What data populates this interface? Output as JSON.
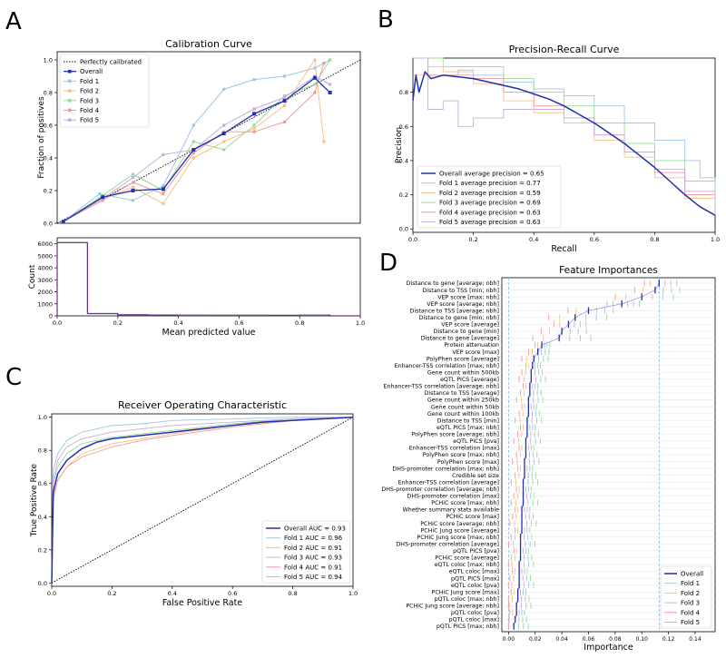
{
  "colors": {
    "overall": "#2030b0",
    "fold1": "#9ec6e8",
    "fold2": "#f7c08a",
    "fold3": "#9fd89a",
    "fold4": "#f29a9a",
    "fold5": "#c5aee0",
    "purple": "#6a2f8a",
    "vline": "#7fb0dc"
  },
  "chart_data": [
    {
      "panel": "A",
      "type": "line",
      "title": "Calibration Curve",
      "xlabel": "",
      "ylabel": "Fraction of positives",
      "xlim": [
        0,
        1
      ],
      "ylim": [
        0,
        1.05
      ],
      "xticks": [
        "0.0",
        "0.2",
        "0.4",
        "0.6",
        "0.8",
        "1.0"
      ],
      "yticks": [
        "0.0",
        "0.2",
        "0.4",
        "0.6",
        "0.8",
        "1.0"
      ],
      "xtick_values": [
        0,
        0.2,
        0.4,
        0.6,
        0.8,
        1.0
      ],
      "ytick_values": [
        0,
        0.2,
        0.4,
        0.6,
        0.8,
        1.0
      ],
      "legend": [
        "Perfectly calibrated",
        "Overall",
        "Fold 1",
        "Fold 2",
        "Fold 3",
        "Fold 4",
        "Fold 5"
      ],
      "series": [
        {
          "name": "Overall",
          "x": [
            0.02,
            0.15,
            0.25,
            0.35,
            0.45,
            0.55,
            0.65,
            0.75,
            0.85,
            0.9
          ],
          "y": [
            0.01,
            0.16,
            0.2,
            0.21,
            0.45,
            0.55,
            0.67,
            0.75,
            0.89,
            0.8
          ]
        },
        {
          "name": "Fold 1",
          "x": [
            0.02,
            0.14,
            0.25,
            0.35,
            0.45,
            0.55,
            0.65,
            0.75,
            0.85,
            0.9
          ],
          "y": [
            0.01,
            0.18,
            0.14,
            0.23,
            0.6,
            0.82,
            0.88,
            0.9,
            0.95,
            1.0
          ]
        },
        {
          "name": "Fold 2",
          "x": [
            0.02,
            0.15,
            0.25,
            0.35,
            0.45,
            0.55,
            0.65,
            0.75,
            0.85,
            0.88
          ],
          "y": [
            0.01,
            0.15,
            0.22,
            0.12,
            0.4,
            0.5,
            0.58,
            0.72,
            1.0,
            0.5
          ]
        },
        {
          "name": "Fold 3",
          "x": [
            0.02,
            0.15,
            0.25,
            0.35,
            0.45,
            0.55,
            0.65,
            0.75,
            0.85,
            0.9
          ],
          "y": [
            0.01,
            0.17,
            0.3,
            0.2,
            0.5,
            0.45,
            0.6,
            0.78,
            0.85,
            1.0
          ]
        },
        {
          "name": "Fold 4",
          "x": [
            0.02,
            0.15,
            0.25,
            0.35,
            0.45,
            0.55,
            0.65,
            0.75,
            0.85,
            0.88
          ],
          "y": [
            0.01,
            0.14,
            0.25,
            0.18,
            0.43,
            0.56,
            0.56,
            0.62,
            0.8,
            0.98
          ]
        },
        {
          "name": "Fold 5",
          "x": [
            0.02,
            0.15,
            0.25,
            0.35,
            0.45,
            0.55,
            0.65,
            0.75,
            0.85,
            0.9
          ],
          "y": [
            0.01,
            0.15,
            0.28,
            0.42,
            0.45,
            0.6,
            0.7,
            0.77,
            0.9,
            0.85
          ]
        }
      ]
    },
    {
      "panel": "A-hist",
      "type": "bar",
      "xlabel": "Mean predicted value",
      "ylabel": "Count",
      "xlim": [
        0,
        1
      ],
      "ylim": [
        0,
        6500
      ],
      "xticks": [
        "0.0",
        "0.2",
        "0.4",
        "0.6",
        "0.8",
        "1.0"
      ],
      "yticks": [
        "0",
        "1000",
        "2000",
        "3000",
        "4000",
        "5000",
        "6000"
      ],
      "xtick_values": [
        0,
        0.2,
        0.4,
        0.6,
        0.8,
        1.0
      ],
      "ytick_values": [
        0,
        1000,
        2000,
        3000,
        4000,
        5000,
        6000
      ],
      "bins": [
        0,
        0.1,
        0.2,
        0.3,
        0.4,
        0.5,
        0.6,
        0.7,
        0.8,
        0.9
      ],
      "values": [
        6100,
        190,
        90,
        70,
        60,
        55,
        50,
        45,
        60,
        0
      ]
    },
    {
      "panel": "B",
      "type": "line",
      "title": "Precision-Recall Curve",
      "xlabel": "Recall",
      "ylabel": "Precision",
      "xlim": [
        0,
        1
      ],
      "ylim": [
        0,
        1.0
      ],
      "xticks": [
        "0.0",
        "0.2",
        "0.4",
        "0.6",
        "0.8",
        "1.0"
      ],
      "yticks": [
        "0.0",
        "0.2",
        "0.4",
        "0.6",
        "0.8"
      ],
      "xtick_values": [
        0,
        0.2,
        0.4,
        0.6,
        0.8,
        1.0
      ],
      "ytick_values": [
        0,
        0.2,
        0.4,
        0.6,
        0.8
      ],
      "legend": [
        "Overall average precision = 0.65",
        "Fold 1 average precision = 0.77",
        "Fold 2 average precision = 0.59",
        "Fold 3 average precision = 0.69",
        "Fold 4 average precision = 0.63",
        "Fold 5 average precision = 0.63"
      ],
      "series": [
        {
          "name": "Overall",
          "x": [
            0,
            0.01,
            0.02,
            0.04,
            0.06,
            0.1,
            0.15,
            0.2,
            0.25,
            0.3,
            0.35,
            0.4,
            0.45,
            0.5,
            0.55,
            0.6,
            0.65,
            0.7,
            0.75,
            0.8,
            0.85,
            0.9,
            0.95,
            1.0
          ],
          "y": [
            0.75,
            0.9,
            0.8,
            0.92,
            0.88,
            0.9,
            0.89,
            0.88,
            0.86,
            0.84,
            0.82,
            0.79,
            0.76,
            0.72,
            0.67,
            0.62,
            0.56,
            0.5,
            0.43,
            0.36,
            0.28,
            0.2,
            0.13,
            0.08
          ]
        },
        {
          "name": "Fold 1",
          "x": [
            0,
            0.05,
            0.1,
            0.15,
            0.2,
            0.3,
            0.4,
            0.5,
            0.6,
            0.7,
            0.8,
            0.9,
            0.95,
            1.0
          ],
          "y": [
            1.0,
            0.9,
            0.9,
            0.93,
            0.9,
            0.86,
            0.82,
            0.78,
            0.72,
            0.62,
            0.52,
            0.4,
            0.3,
            0.1
          ]
        },
        {
          "name": "Fold 2",
          "x": [
            0,
            0.05,
            0.1,
            0.2,
            0.3,
            0.4,
            0.5,
            0.6,
            0.7,
            0.8,
            0.9,
            1.0
          ],
          "y": [
            0.9,
            0.95,
            0.92,
            0.85,
            0.75,
            0.68,
            0.62,
            0.52,
            0.42,
            0.3,
            0.18,
            0.08
          ]
        },
        {
          "name": "Fold 3",
          "x": [
            0,
            0.05,
            0.1,
            0.2,
            0.3,
            0.4,
            0.5,
            0.6,
            0.7,
            0.8,
            0.9,
            1.0
          ],
          "y": [
            1.0,
            1.0,
            0.95,
            0.95,
            0.88,
            0.8,
            0.72,
            0.62,
            0.5,
            0.4,
            0.28,
            0.1
          ]
        },
        {
          "name": "Fold 4",
          "x": [
            0,
            0.05,
            0.1,
            0.2,
            0.3,
            0.4,
            0.5,
            0.6,
            0.7,
            0.8,
            0.9,
            1.0
          ],
          "y": [
            1.0,
            0.9,
            0.9,
            0.88,
            0.8,
            0.72,
            0.65,
            0.55,
            0.45,
            0.33,
            0.2,
            0.08
          ]
        },
        {
          "name": "Fold 5",
          "x": [
            0,
            0.05,
            0.1,
            0.15,
            0.2,
            0.3,
            0.4,
            0.5,
            0.6,
            0.7,
            0.8,
            0.9,
            1.0
          ],
          "y": [
            1.0,
            0.7,
            0.75,
            0.6,
            0.65,
            0.7,
            0.7,
            0.65,
            0.55,
            0.45,
            0.35,
            0.22,
            0.08
          ]
        }
      ]
    },
    {
      "panel": "C",
      "type": "line",
      "title": "Receiver Operating Characteristic",
      "xlabel": "False Positive Rate",
      "ylabel": "True Positive Rate",
      "xlim": [
        0,
        1
      ],
      "ylim": [
        0,
        1.02
      ],
      "xticks": [
        "0.0",
        "0.2",
        "0.4",
        "0.6",
        "0.8",
        "1.0"
      ],
      "yticks": [
        "0.0",
        "0.2",
        "0.4",
        "0.6",
        "0.8",
        "1.0"
      ],
      "xtick_values": [
        0,
        0.2,
        0.4,
        0.6,
        0.8,
        1.0
      ],
      "ytick_values": [
        0,
        0.2,
        0.4,
        0.6,
        0.8,
        1.0
      ],
      "legend": [
        "Overall AUC = 0.93",
        "Fold 1 AUC = 0.96",
        "Fold 2 AUC = 0.91",
        "Fold 3 AUC = 0.93",
        "Fold 4 AUC = 0.91",
        "Fold 5 AUC = 0.94"
      ],
      "series": [
        {
          "name": "Overall",
          "x": [
            0,
            0.005,
            0.02,
            0.05,
            0.1,
            0.15,
            0.2,
            0.3,
            0.4,
            0.5,
            0.6,
            0.7,
            0.8,
            0.9,
            1.0
          ],
          "y": [
            0,
            0.55,
            0.66,
            0.74,
            0.81,
            0.85,
            0.87,
            0.89,
            0.91,
            0.93,
            0.95,
            0.97,
            0.98,
            0.99,
            1.0
          ]
        },
        {
          "name": "Fold 1",
          "x": [
            0,
            0.005,
            0.02,
            0.05,
            0.1,
            0.2,
            0.3,
            0.4,
            0.6,
            0.8,
            1.0
          ],
          "y": [
            0,
            0.68,
            0.78,
            0.86,
            0.91,
            0.95,
            0.96,
            0.98,
            0.99,
            1.0,
            1.0
          ]
        },
        {
          "name": "Fold 2",
          "x": [
            0,
            0.005,
            0.02,
            0.05,
            0.1,
            0.2,
            0.3,
            0.4,
            0.6,
            0.8,
            1.0
          ],
          "y": [
            0,
            0.5,
            0.62,
            0.7,
            0.78,
            0.84,
            0.87,
            0.9,
            0.95,
            0.98,
            1.0
          ]
        },
        {
          "name": "Fold 3",
          "x": [
            0,
            0.005,
            0.02,
            0.05,
            0.1,
            0.2,
            0.3,
            0.4,
            0.6,
            0.8,
            1.0
          ],
          "y": [
            0,
            0.6,
            0.7,
            0.78,
            0.84,
            0.88,
            0.9,
            0.92,
            0.96,
            0.99,
            1.0
          ]
        },
        {
          "name": "Fold 4",
          "x": [
            0,
            0.005,
            0.02,
            0.05,
            0.1,
            0.2,
            0.3,
            0.4,
            0.6,
            0.8,
            1.0
          ],
          "y": [
            0,
            0.52,
            0.62,
            0.7,
            0.76,
            0.82,
            0.86,
            0.89,
            0.94,
            0.98,
            1.0
          ]
        },
        {
          "name": "Fold 5",
          "x": [
            0,
            0.005,
            0.02,
            0.05,
            0.1,
            0.2,
            0.3,
            0.4,
            0.6,
            0.8,
            1.0
          ],
          "y": [
            0,
            0.62,
            0.74,
            0.82,
            0.87,
            0.91,
            0.93,
            0.95,
            0.97,
            0.99,
            1.0
          ]
        }
      ]
    },
    {
      "panel": "D",
      "type": "scatter",
      "title": "Feature Importances",
      "xlabel": "Importance",
      "xlim": [
        -0.005,
        0.155
      ],
      "xticks": [
        "0.00",
        "0.02",
        "0.04",
        "0.06",
        "0.08",
        "0.10",
        "0.12",
        "0.14"
      ],
      "xtick_values": [
        0,
        0.02,
        0.04,
        0.06,
        0.08,
        0.1,
        0.12,
        0.14
      ],
      "legend": [
        "Overall",
        "Fold 1",
        "Fold 2",
        "Fold 3",
        "Fold 4",
        "Fold 5"
      ],
      "features": [
        "Distance to gene [average; nbh]",
        "Distance to TSS [min; nbh]",
        "VEP score [max; nbh]",
        "VEP score [average; nbh]",
        "Distance to TSS [average; nbh]",
        "Distance to gene [min; nbh]",
        "VEP score [average]",
        "Distance to gene [min]",
        "Distance to gene [average]",
        "Protein attenuation",
        "VEP score [max]",
        "PolyPhen score [average]",
        "Enhancer-TSS correlation [max; nbh]",
        "Gene count within 500kb",
        "eQTL PICS [average]",
        "Enhancer-TSS correlation [average; nbh]",
        "Distance to TSS [average]",
        "Gene count within 250kb",
        "Gene count within 50kb",
        "Gene count within 100kb",
        "Distance to TSS [min]",
        "eQTL PICS [max; nbh]",
        "PolyPhen score [average; nbh]",
        "eQTL PICS [pva]",
        "Enhancer-TSS correlation [max]",
        "PolyPhen score [max; nbh]",
        "PolyPhen score [max]",
        "DHS-promoter correlation [max; nbh]",
        "Credible set size",
        "Enhancer-TSS correlation [average]",
        "DHS-promoter correlation [average; nbh]",
        "DHS-promoter correlation [max]",
        "PCHiC score [max; nbh]",
        "Whether summary stats available",
        "PCHiC score [max]",
        "PCHiC score [average; nbh]",
        "PCHiC Jung score [average]",
        "PCHiC Jung score [max; nbh]",
        "DHS-promoter correlation [average]",
        "pQTL PICS [pva]",
        "PCHiC score [average]",
        "eQTL coloc [max; nbh]",
        "eQTL coloc [max]",
        "pQTL PICS [max]",
        "eQTL coloc [pva]",
        "PCHiC Jung score [max]",
        "pQTL coloc [max; nbh]",
        "PCHiC Jung score [average; nbh]",
        "pQTL coloc [pva]",
        "pQTL coloc [max]",
        "pQTL PICS [max; nbh]"
      ],
      "overall": [
        0.113,
        0.11,
        0.1,
        0.085,
        0.06,
        0.05,
        0.045,
        0.04,
        0.038,
        0.025,
        0.022,
        0.019,
        0.018,
        0.017,
        0.017,
        0.016,
        0.016,
        0.015,
        0.015,
        0.015,
        0.014,
        0.014,
        0.014,
        0.013,
        0.013,
        0.013,
        0.012,
        0.012,
        0.012,
        0.011,
        0.011,
        0.011,
        0.011,
        0.01,
        0.01,
        0.01,
        0.01,
        0.009,
        0.009,
        0.009,
        0.009,
        0.008,
        0.008,
        0.008,
        0.008,
        0.007,
        0.007,
        0.006,
        0.006,
        0.005,
        0.004
      ],
      "vlines": [
        0.0,
        0.113
      ]
    }
  ]
}
